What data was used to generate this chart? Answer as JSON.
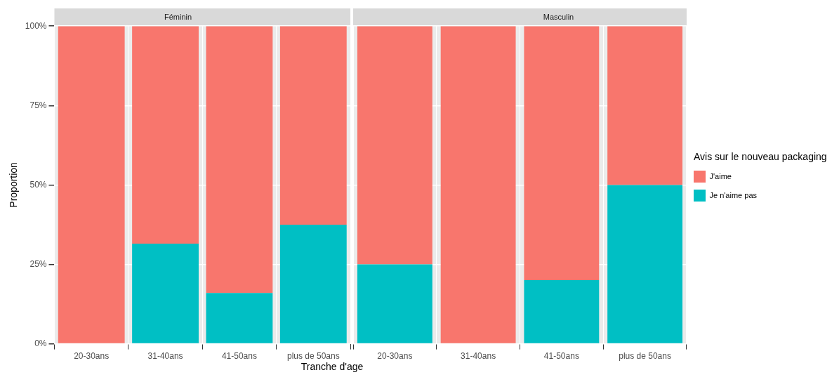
{
  "chart_data": [
    {
      "type": "bar",
      "title": "Féminin",
      "ylabel": "Proportion",
      "xlabel": "Tranche d'age",
      "categories": [
        "20-30ans",
        "31-40ans",
        "41-50ans",
        "plus de 50ans"
      ],
      "stacked": true,
      "grid": true,
      "ylim": [
        0,
        100
      ],
      "yticks": [
        {
          "value": 0,
          "label": "0%"
        },
        {
          "value": 25,
          "label": "25%"
        },
        {
          "value": 50,
          "label": "50%"
        },
        {
          "value": 75,
          "label": "75%"
        },
        {
          "value": 100,
          "label": "100%"
        }
      ],
      "series": [
        {
          "color": "#00bfc4",
          "values": [
            0,
            31.5,
            16,
            37.5
          ]
        },
        {
          "color": "#f8766d",
          "values": [
            100,
            68.5,
            84,
            62.5
          ]
        }
      ]
    },
    {
      "type": "bar",
      "title": "Masculin",
      "categories": [
        "20-30ans",
        "31-40ans",
        "41-50ans",
        "plus de 50ans"
      ],
      "stacked": true,
      "grid": true,
      "tick_labels": "x",
      "legend": "right",
      "legend_title": "Avis sur le nouveau packaging",
      "ylim": [
        0,
        100
      ],
      "yticks": [
        {
          "value": 0,
          "label": null
        },
        {
          "value": 25,
          "label": null
        },
        {
          "value": 50,
          "label": null
        },
        {
          "value": 75,
          "label": null
        },
        {
          "value": 100,
          "label": null
        }
      ],
      "series": [
        {
          "name": "Je n'aime pas",
          "color": "#00bfc4",
          "values": [
            25,
            0,
            20,
            50
          ]
        },
        {
          "name": "J'aime",
          "color": "#f8766d",
          "values": [
            75,
            100,
            80,
            50
          ]
        }
      ]
    }
  ]
}
